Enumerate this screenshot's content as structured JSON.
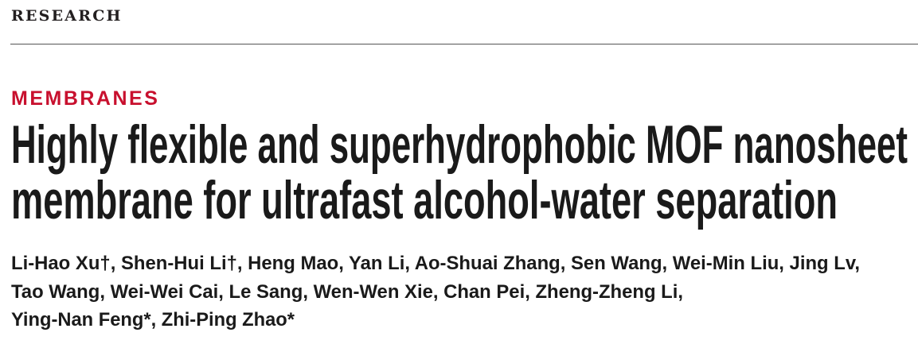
{
  "header": {
    "section": "RESEARCH"
  },
  "article": {
    "kicker": "MEMBRANES",
    "title_lines": [
      "Highly flexible and superhydrophobic MOF nanosheet",
      "membrane for ultrafast alcohol-water separation"
    ],
    "author_lines": [
      "Li-Hao Xu†, Shen-Hui Li†, Heng Mao, Yan Li, Ao-Shuai Zhang, Sen Wang, Wei-Min Liu, Jing Lv,",
      "Tao Wang, Wei-Wei Cai, Le Sang, Wen-Wen Xie, Chan Pei, Zheng-Zheng Li,",
      "Ying-Nan Feng*, Zhi-Ping Zhao*"
    ]
  },
  "colors": {
    "kicker": "#c8102e",
    "text": "#1a1a1a"
  }
}
